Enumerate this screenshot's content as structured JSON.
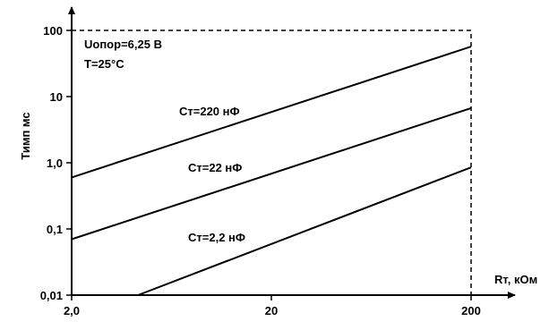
{
  "chart_data": {
    "type": "line",
    "xscale": "log",
    "yscale": "log",
    "xlim": [
      2,
      200
    ],
    "ylim": [
      0.01,
      100
    ],
    "xlabel": "Rт, кОм",
    "ylabel": "Тимп мс",
    "x_ticks": [
      {
        "value": 2,
        "label": "2,0"
      },
      {
        "value": 20,
        "label": "20"
      },
      {
        "value": 200,
        "label": "200"
      }
    ],
    "y_ticks": [
      {
        "value": 0.01,
        "label": "0,01"
      },
      {
        "value": 0.1,
        "label": "0,1"
      },
      {
        "value": 1,
        "label": "1,0"
      },
      {
        "value": 10,
        "label": "10"
      },
      {
        "value": 100,
        "label": "100"
      }
    ],
    "annotations": [
      {
        "text": "Uопор=6,25 В"
      },
      {
        "text": "T=25°С"
      }
    ],
    "series": [
      {
        "name": "Ст=220 нФ",
        "x": [
          2,
          200
        ],
        "y": [
          0.6,
          57
        ]
      },
      {
        "name": "Ст=22 нФ",
        "x": [
          2,
          200
        ],
        "y": [
          0.07,
          6.7
        ]
      },
      {
        "name": "Ст=2,2 нФ",
        "x": [
          4.3,
          200
        ],
        "y": [
          0.01,
          0.85
        ]
      }
    ],
    "grid": false
  }
}
